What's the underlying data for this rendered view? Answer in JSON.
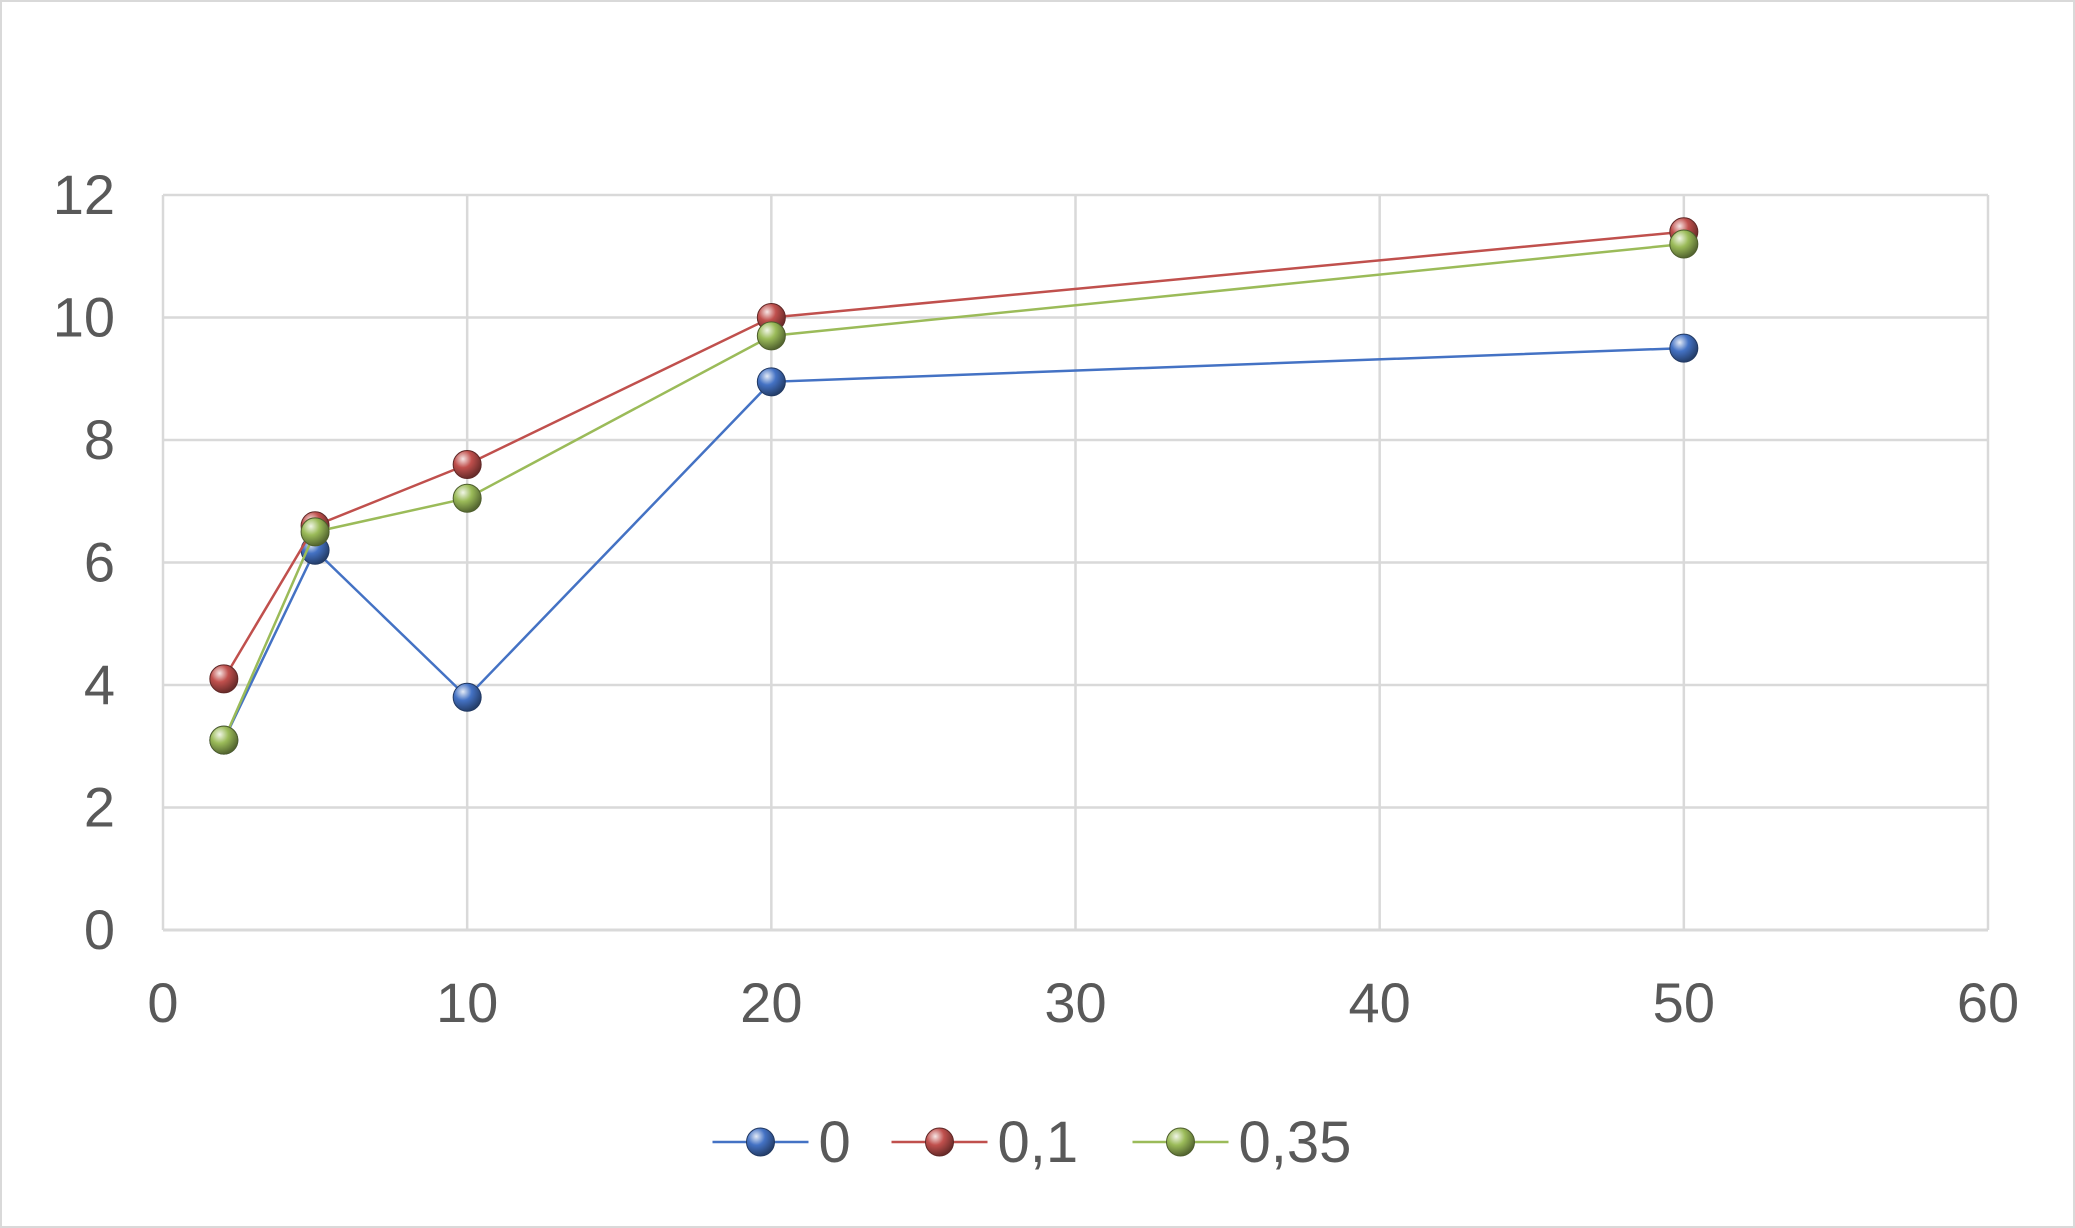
{
  "chart_data": {
    "type": "scatter",
    "title": "",
    "xlabel": "",
    "ylabel": "",
    "xlim": [
      0,
      60
    ],
    "ylim": [
      0,
      12
    ],
    "x_ticks": [
      0,
      10,
      20,
      30,
      40,
      50,
      60
    ],
    "y_ticks": [
      0,
      2,
      4,
      6,
      8,
      10,
      12
    ],
    "x_tick_labels": [
      "0",
      "10",
      "20",
      "30",
      "40",
      "50",
      "60"
    ],
    "y_tick_labels": [
      "0",
      "2",
      "4",
      "6",
      "8",
      "10",
      "12"
    ],
    "grid": true,
    "legend_position": "bottom",
    "markers": "sphere",
    "lines": "straight",
    "series": [
      {
        "name": "0",
        "color": "#4472C4",
        "x": [
          2,
          5,
          10,
          20,
          50
        ],
        "y": [
          3.1,
          6.2,
          3.8,
          8.95,
          9.5
        ]
      },
      {
        "name": "0,1",
        "color": "#C0504D",
        "x": [
          2,
          5,
          10,
          20,
          50
        ],
        "y": [
          4.1,
          6.6,
          7.6,
          10.0,
          11.4
        ]
      },
      {
        "name": "0,35",
        "color": "#9BBB59",
        "x": [
          2,
          5,
          10,
          20,
          50
        ],
        "y": [
          3.1,
          6.5,
          7.05,
          9.7,
          11.2
        ]
      }
    ]
  }
}
